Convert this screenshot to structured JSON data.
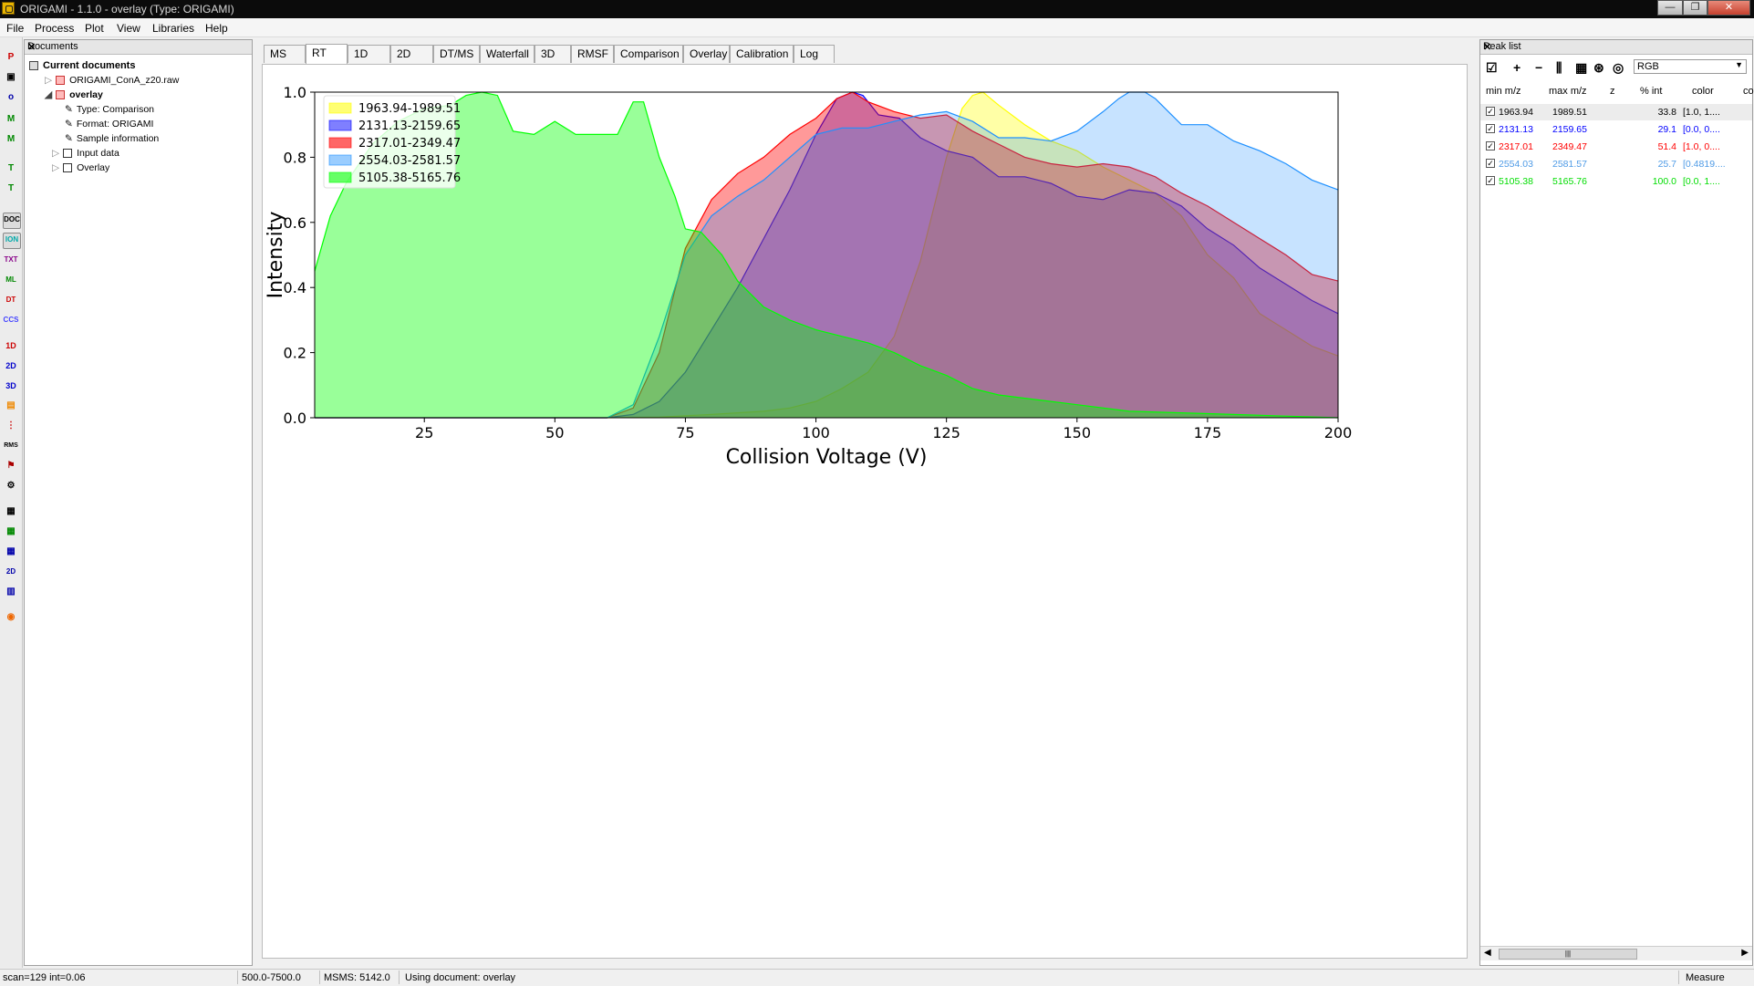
{
  "window": {
    "title": "ORIGAMI - 1.1.0 - overlay (Type: ORIGAMI)",
    "min": "—",
    "max": "❐",
    "close": "✕"
  },
  "menu": [
    "File",
    "Process",
    "Plot",
    "View",
    "Libraries",
    "Help"
  ],
  "left_toolbar": [
    "P",
    "▣",
    "o",
    "M",
    "M",
    "T",
    "T",
    "DOC",
    "ION",
    "TXT",
    "ML",
    "DT",
    "CCS",
    "1D",
    "2D",
    "3D",
    "▤",
    "⋮",
    "RMS",
    "⚑",
    "⚙",
    "▦",
    "▦",
    "▦",
    "2D",
    "▥",
    "◉"
  ],
  "documents": {
    "title": "Documents",
    "close": "✕",
    "root": "Current documents",
    "items": [
      {
        "label": "ORIGAMI_ConA_z20.raw",
        "level": 1
      },
      {
        "label": "overlay",
        "level": 1
      },
      {
        "label": "Type: Comparison",
        "level": 2
      },
      {
        "label": "Format: ORIGAMI",
        "level": 2
      },
      {
        "label": "Sample information",
        "level": 2
      },
      {
        "label": "Input data",
        "level": 2
      },
      {
        "label": "Overlay",
        "level": 2
      }
    ]
  },
  "tabs": [
    "MS",
    "RT",
    "1D",
    "2D",
    "DT/MS",
    "Waterfall",
    "3D",
    "RMSF",
    "Comparison",
    "Overlay",
    "Calibration",
    "Log"
  ],
  "active_tab": "RT",
  "chart_data": {
    "type": "area",
    "xlabel": "Collision Voltage (V)",
    "ylabel": "Intensity",
    "xlim": [
      4,
      200
    ],
    "ylim": [
      0,
      1.0
    ],
    "xticks": [
      25,
      50,
      75,
      100,
      125,
      150,
      175,
      200
    ],
    "yticks": [
      0.0,
      0.2,
      0.4,
      0.6,
      0.8,
      1.0
    ],
    "legend_position": "top-left",
    "series": [
      {
        "name": "1963.94-1989.51",
        "color": "#ffff00",
        "alpha": 0.35,
        "points": [
          [
            4,
            0
          ],
          [
            60,
            0
          ],
          [
            70,
            0.002
          ],
          [
            80,
            0.01
          ],
          [
            90,
            0.02
          ],
          [
            95,
            0.03
          ],
          [
            100,
            0.05
          ],
          [
            105,
            0.09
          ],
          [
            110,
            0.14
          ],
          [
            115,
            0.25
          ],
          [
            120,
            0.48
          ],
          [
            125,
            0.8
          ],
          [
            128,
            0.95
          ],
          [
            130,
            0.99
          ],
          [
            132,
            1.0
          ],
          [
            135,
            0.96
          ],
          [
            140,
            0.9
          ],
          [
            145,
            0.85
          ],
          [
            150,
            0.82
          ],
          [
            155,
            0.77
          ],
          [
            160,
            0.73
          ],
          [
            165,
            0.69
          ],
          [
            170,
            0.62
          ],
          [
            175,
            0.5
          ],
          [
            180,
            0.43
          ],
          [
            185,
            0.32
          ],
          [
            190,
            0.27
          ],
          [
            195,
            0.22
          ],
          [
            200,
            0.19
          ]
        ]
      },
      {
        "name": "2131.13-2159.65",
        "color": "#0000ff",
        "alpha": 0.3,
        "points": [
          [
            4,
            0
          ],
          [
            60,
            0
          ],
          [
            65,
            0.01
          ],
          [
            70,
            0.05
          ],
          [
            75,
            0.14
          ],
          [
            80,
            0.27
          ],
          [
            85,
            0.4
          ],
          [
            90,
            0.55
          ],
          [
            95,
            0.7
          ],
          [
            100,
            0.87
          ],
          [
            104,
            0.98
          ],
          [
            107,
            1.0
          ],
          [
            109,
            0.99
          ],
          [
            112,
            0.93
          ],
          [
            116,
            0.92
          ],
          [
            120,
            0.86
          ],
          [
            125,
            0.82
          ],
          [
            130,
            0.8
          ],
          [
            135,
            0.74
          ],
          [
            140,
            0.74
          ],
          [
            145,
            0.72
          ],
          [
            150,
            0.68
          ],
          [
            155,
            0.67
          ],
          [
            160,
            0.7
          ],
          [
            165,
            0.69
          ],
          [
            170,
            0.65
          ],
          [
            175,
            0.58
          ],
          [
            180,
            0.53
          ],
          [
            185,
            0.46
          ],
          [
            190,
            0.41
          ],
          [
            195,
            0.36
          ],
          [
            200,
            0.32
          ]
        ]
      },
      {
        "name": "2317.01-2349.47",
        "color": "#ff0000",
        "alpha": 0.4,
        "points": [
          [
            4,
            0
          ],
          [
            60,
            0
          ],
          [
            65,
            0.03
          ],
          [
            70,
            0.2
          ],
          [
            75,
            0.52
          ],
          [
            80,
            0.67
          ],
          [
            85,
            0.75
          ],
          [
            90,
            0.8
          ],
          [
            95,
            0.87
          ],
          [
            100,
            0.92
          ],
          [
            104,
            0.98
          ],
          [
            107,
            1.0
          ],
          [
            110,
            0.97
          ],
          [
            115,
            0.94
          ],
          [
            120,
            0.92
          ],
          [
            125,
            0.93
          ],
          [
            130,
            0.88
          ],
          [
            135,
            0.84
          ],
          [
            140,
            0.8
          ],
          [
            145,
            0.78
          ],
          [
            150,
            0.77
          ],
          [
            155,
            0.78
          ],
          [
            160,
            0.77
          ],
          [
            165,
            0.74
          ],
          [
            170,
            0.69
          ],
          [
            175,
            0.65
          ],
          [
            180,
            0.6
          ],
          [
            185,
            0.55
          ],
          [
            190,
            0.5
          ],
          [
            195,
            0.44
          ],
          [
            200,
            0.42
          ]
        ]
      },
      {
        "name": "2554.03-2581.57",
        "color": "#1e90ff",
        "alpha": 0.25,
        "points": [
          [
            4,
            0
          ],
          [
            60,
            0
          ],
          [
            65,
            0.04
          ],
          [
            70,
            0.25
          ],
          [
            75,
            0.5
          ],
          [
            80,
            0.62
          ],
          [
            85,
            0.68
          ],
          [
            90,
            0.73
          ],
          [
            95,
            0.8
          ],
          [
            100,
            0.87
          ],
          [
            105,
            0.89
          ],
          [
            110,
            0.89
          ],
          [
            115,
            0.91
          ],
          [
            120,
            0.93
          ],
          [
            125,
            0.94
          ],
          [
            130,
            0.91
          ],
          [
            135,
            0.86
          ],
          [
            140,
            0.86
          ],
          [
            145,
            0.85
          ],
          [
            150,
            0.88
          ],
          [
            155,
            0.94
          ],
          [
            158,
            0.98
          ],
          [
            160,
            1.0
          ],
          [
            163,
            1.0
          ],
          [
            165,
            0.98
          ],
          [
            170,
            0.9
          ],
          [
            175,
            0.9
          ],
          [
            180,
            0.85
          ],
          [
            185,
            0.82
          ],
          [
            190,
            0.78
          ],
          [
            195,
            0.73
          ],
          [
            200,
            0.7
          ]
        ]
      },
      {
        "name": "5105.38-5165.76",
        "color": "#00ff00",
        "alpha": 0.4,
        "points": [
          [
            4,
            0.45
          ],
          [
            7,
            0.62
          ],
          [
            10,
            0.72
          ],
          [
            15,
            0.84
          ],
          [
            20,
            0.91
          ],
          [
            25,
            0.95
          ],
          [
            30,
            0.96
          ],
          [
            33,
            0.99
          ],
          [
            36,
            1.0
          ],
          [
            39,
            0.99
          ],
          [
            42,
            0.88
          ],
          [
            46,
            0.87
          ],
          [
            50,
            0.91
          ],
          [
            54,
            0.87
          ],
          [
            58,
            0.87
          ],
          [
            62,
            0.87
          ],
          [
            65,
            0.97
          ],
          [
            67,
            0.97
          ],
          [
            70,
            0.8
          ],
          [
            73,
            0.68
          ],
          [
            75,
            0.58
          ],
          [
            78,
            0.57
          ],
          [
            82,
            0.5
          ],
          [
            85,
            0.42
          ],
          [
            90,
            0.34
          ],
          [
            95,
            0.3
          ],
          [
            100,
            0.27
          ],
          [
            105,
            0.25
          ],
          [
            110,
            0.23
          ],
          [
            115,
            0.2
          ],
          [
            120,
            0.16
          ],
          [
            125,
            0.13
          ],
          [
            130,
            0.09
          ],
          [
            135,
            0.07
          ],
          [
            140,
            0.06
          ],
          [
            150,
            0.04
          ],
          [
            160,
            0.02
          ],
          [
            170,
            0.015
          ],
          [
            180,
            0.01
          ],
          [
            190,
            0.005
          ],
          [
            200,
            0
          ]
        ]
      }
    ]
  },
  "peaklist": {
    "title": "Peak list",
    "close": "✕",
    "tools": [
      "☑",
      "+",
      "−",
      "⫼",
      "▦",
      "⊛",
      "◎"
    ],
    "colormap": "RGB",
    "columns": [
      "min m/z",
      "max m/z",
      "z",
      "% int",
      "color",
      "co"
    ],
    "rows": [
      {
        "min": "1963.94",
        "max": "1989.51",
        "z": "",
        "pct": "33.8",
        "color": "[1.0, 1....",
        "tcolor": "#000000"
      },
      {
        "min": "2131.13",
        "max": "2159.65",
        "z": "",
        "pct": "29.1",
        "color": "[0.0, 0....",
        "tcolor": "#0000ff"
      },
      {
        "min": "2317.01",
        "max": "2349.47",
        "z": "",
        "pct": "51.4",
        "color": "[1.0, 0....",
        "tcolor": "#ff0000"
      },
      {
        "min": "2554.03",
        "max": "2581.57",
        "z": "",
        "pct": "25.7",
        "color": "[0.4819....",
        "tcolor": "#4f9be6"
      },
      {
        "min": "5105.38",
        "max": "5165.76",
        "z": "",
        "pct": "100.0",
        "color": "[0.0, 1....",
        "tcolor": "#00dd00"
      }
    ],
    "scroll_grip": "|||"
  },
  "status": {
    "scan": "scan=129 int=0.06",
    "range": "500.0-7500.0",
    "msms": "MSMS: 5142.0",
    "document": "Using document: overlay",
    "mode": "Measure"
  }
}
